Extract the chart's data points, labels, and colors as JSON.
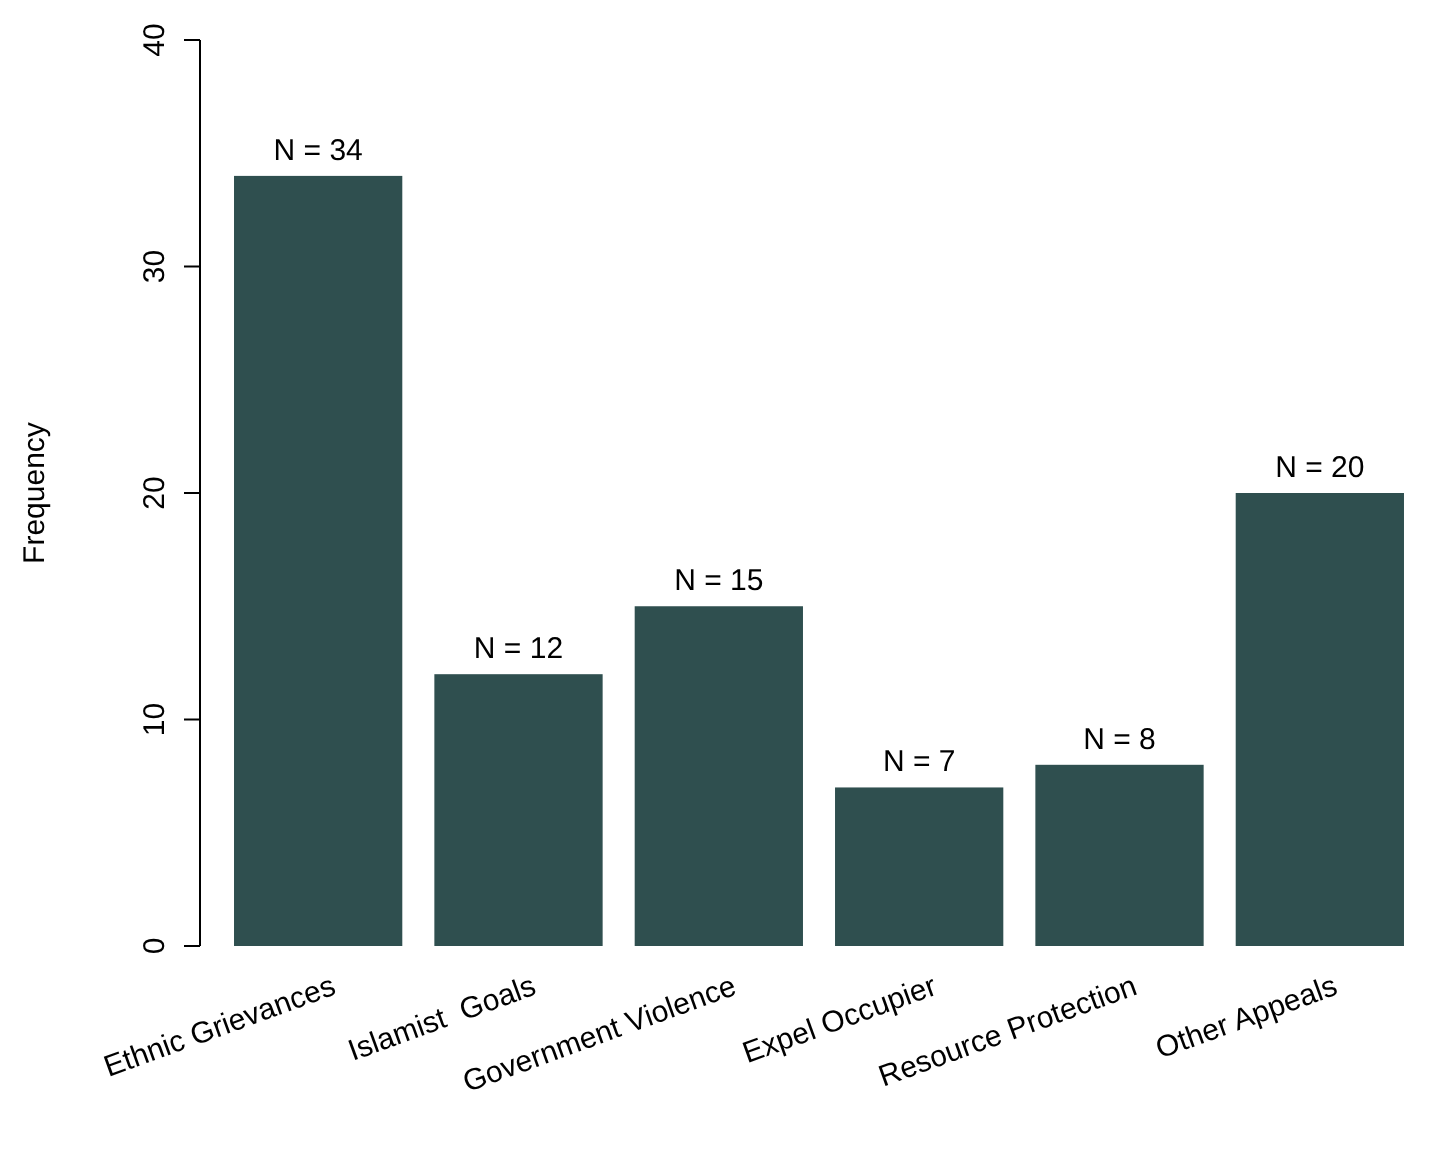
{
  "chart_data": {
    "type": "bar",
    "ylabel": "Frequency",
    "categories": [
      "Ethnic Grievances",
      "Islamist  Goals",
      "Government Violence",
      "Expel Occupier",
      "Resource Protection",
      "Other Appeals"
    ],
    "values": [
      34,
      12,
      15,
      7,
      8,
      20
    ],
    "value_labels": [
      "N = 34",
      "N = 12",
      "N = 15",
      "N = 7",
      "N = 8",
      "N = 20"
    ],
    "color": "#2f4f4f",
    "ylim": [
      0,
      40
    ],
    "yticks": [
      0,
      10,
      20,
      30,
      40
    ],
    "grid": false
  }
}
